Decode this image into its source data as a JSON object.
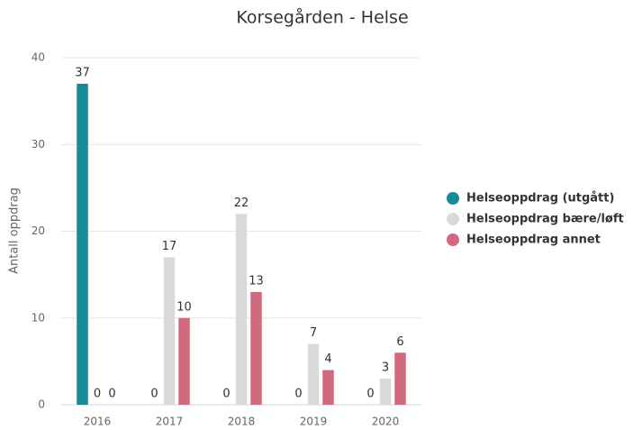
{
  "chart_data": {
    "type": "bar",
    "title": "Korsegården - Helse",
    "y_label": "Antall oppdrag",
    "categories": [
      "2016",
      "2017",
      "2018",
      "2019",
      "2020"
    ],
    "series": [
      {
        "name": "Helseoppdrag (utgått)",
        "color": "#178a99",
        "values": [
          37,
          0,
          0,
          0,
          0
        ]
      },
      {
        "name": "Helseoppdrag bære/løft",
        "color": "#d9d9d9",
        "values": [
          0,
          17,
          22,
          7,
          3
        ]
      },
      {
        "name": "Helseoppdrag annet",
        "color": "#cf6a7f",
        "values": [
          0,
          10,
          13,
          4,
          6
        ]
      }
    ],
    "ylim": [
      0,
      40
    ],
    "yticks": [
      0,
      10,
      20,
      30,
      40
    ],
    "grid": true
  }
}
